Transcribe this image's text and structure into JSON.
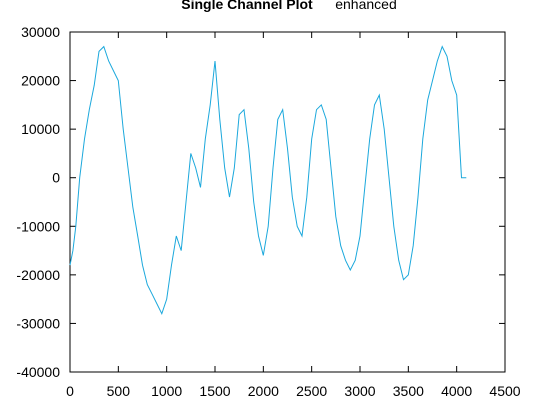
{
  "chart_data": {
    "type": "line",
    "title": "Single Channel Plot",
    "subtitle": "enhanced",
    "xlim": [
      0,
      4500
    ],
    "ylim": [
      -40000,
      30000
    ],
    "x_ticks": [
      0,
      500,
      1000,
      1500,
      2000,
      2500,
      3000,
      3500,
      4000,
      4500
    ],
    "y_ticks": [
      -40000,
      -30000,
      -20000,
      -10000,
      0,
      10000,
      20000,
      30000
    ],
    "grid": false,
    "series": [
      {
        "color": "#1ba8dc",
        "x": [
          0,
          30,
          60,
          100,
          150,
          200,
          250,
          300,
          350,
          400,
          450,
          500,
          550,
          600,
          650,
          700,
          750,
          800,
          850,
          900,
          950,
          1000,
          1050,
          1100,
          1150,
          1200,
          1250,
          1300,
          1350,
          1400,
          1450,
          1500,
          1550,
          1600,
          1650,
          1700,
          1750,
          1800,
          1850,
          1900,
          1950,
          2000,
          2050,
          2100,
          2150,
          2200,
          2250,
          2300,
          2350,
          2400,
          2450,
          2500,
          2550,
          2600,
          2650,
          2700,
          2750,
          2800,
          2850,
          2900,
          2950,
          3000,
          3050,
          3100,
          3150,
          3200,
          3250,
          3300,
          3350,
          3400,
          3450,
          3500,
          3550,
          3600,
          3650,
          3700,
          3750,
          3800,
          3850,
          3900,
          3950,
          4000,
          4050,
          4100
        ],
        "values": [
          -18000,
          -15000,
          -10000,
          0,
          8000,
          14000,
          19000,
          26000,
          27000,
          24000,
          22000,
          20000,
          10000,
          2000,
          -6000,
          -12000,
          -18000,
          -22000,
          -24000,
          -26000,
          -28000,
          -25000,
          -18000,
          -12000,
          -15000,
          -5000,
          5000,
          2000,
          -2000,
          8000,
          15000,
          24000,
          12000,
          2000,
          -4000,
          2000,
          13000,
          14000,
          6000,
          -5000,
          -12000,
          -16000,
          -10000,
          2000,
          12000,
          14000,
          6000,
          -4000,
          -10000,
          -12000,
          -4000,
          8000,
          14000,
          15000,
          12000,
          2000,
          -8000,
          -14000,
          -17000,
          -19000,
          -17000,
          -12000,
          -2000,
          8000,
          15000,
          17000,
          10000,
          0,
          -10000,
          -17000,
          -21000,
          -20000,
          -14000,
          -4000,
          8000,
          16000,
          20000,
          24000,
          27000,
          25000,
          20000,
          17000,
          0,
          0
        ]
      }
    ]
  }
}
